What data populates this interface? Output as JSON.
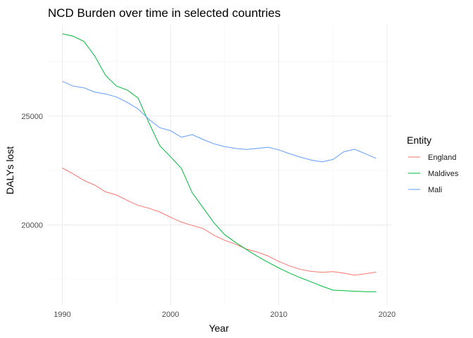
{
  "chart_data": {
    "type": "line",
    "title": "NCD Burden over time in selected countries",
    "xlabel": "Year",
    "ylabel": "DALYs lost",
    "xlim": [
      1988.6,
      2020.4
    ],
    "ylim": [
      16300,
      29200
    ],
    "x_ticks": [
      1990,
      2000,
      2010,
      2020
    ],
    "y_ticks": [
      20000,
      25000
    ],
    "x_minor": [
      1995,
      2005,
      2015
    ],
    "y_minor": [
      17500,
      22500,
      27500
    ],
    "grid": true,
    "legend": {
      "title": "Entity",
      "position": "right"
    },
    "x": [
      1990,
      1991,
      1992,
      1993,
      1994,
      1995,
      1996,
      1997,
      1998,
      1999,
      2000,
      2001,
      2002,
      2003,
      2004,
      2005,
      2006,
      2007,
      2008,
      2009,
      2010,
      2011,
      2012,
      2013,
      2014,
      2015,
      2016,
      2017,
      2018,
      2019
    ],
    "series": [
      {
        "name": "England",
        "color": "#F8766D",
        "values": [
          22620,
          22350,
          22050,
          21830,
          21520,
          21380,
          21130,
          20900,
          20770,
          20600,
          20360,
          20130,
          19980,
          19840,
          19530,
          19300,
          19120,
          18900,
          18760,
          18580,
          18330,
          18120,
          17960,
          17870,
          17830,
          17860,
          17790,
          17700,
          17760,
          17840
        ]
      },
      {
        "name": "Maldives",
        "color": "#00BA38",
        "values": [
          28780,
          28670,
          28430,
          27750,
          26870,
          26380,
          26200,
          25830,
          24700,
          23650,
          23130,
          22600,
          21480,
          20800,
          20110,
          19560,
          19200,
          18880,
          18570,
          18290,
          18030,
          17790,
          17580,
          17390,
          17190,
          17010,
          16990,
          16960,
          16940,
          16940
        ]
      },
      {
        "name": "Mali",
        "color": "#619CFF",
        "values": [
          26600,
          26380,
          26300,
          26100,
          26020,
          25880,
          25630,
          25330,
          24850,
          24470,
          24330,
          24030,
          24150,
          23930,
          23730,
          23600,
          23520,
          23470,
          23520,
          23570,
          23450,
          23270,
          23120,
          22980,
          22900,
          23010,
          23360,
          23480,
          23270,
          23060
        ]
      }
    ]
  }
}
